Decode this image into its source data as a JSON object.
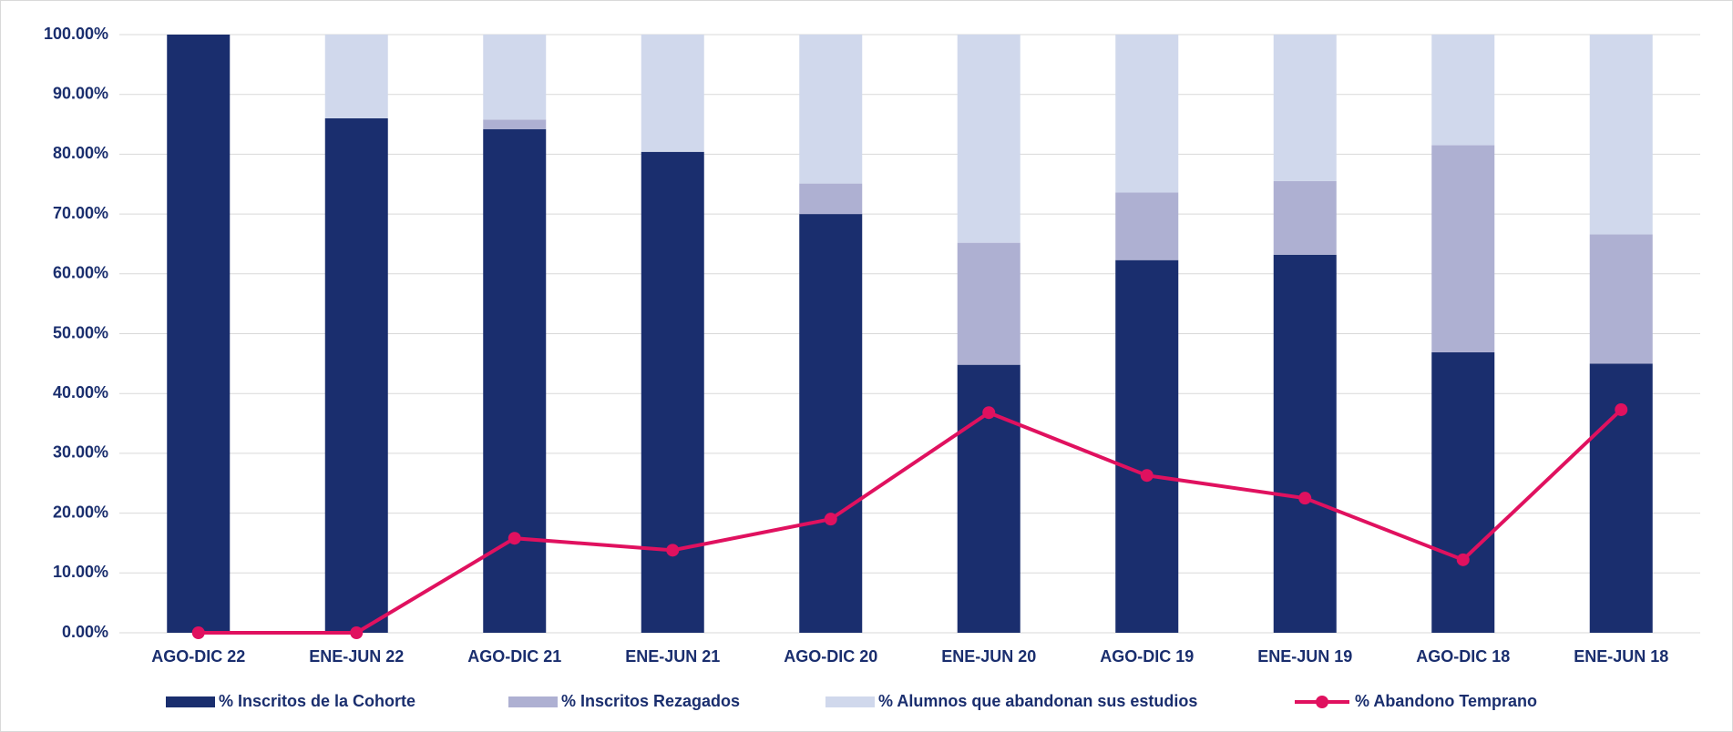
{
  "chart_data": {
    "type": "bar",
    "stacked": true,
    "categories": [
      "AGO-DIC 22",
      "ENE-JUN 22",
      "AGO-DIC 21",
      "ENE-JUN 21",
      "AGO-DIC 20",
      "ENE-JUN 20",
      "AGO-DIC 19",
      "ENE-JUN 19",
      "AGO-DIC 18",
      "ENE-JUN 18"
    ],
    "series": [
      {
        "name": "% Inscritos de la Cohorte",
        "color": "#1a2e6e",
        "type": "bar",
        "values": [
          100,
          86,
          84.2,
          80.4,
          70,
          44.8,
          62.3,
          63.2,
          46.9,
          45
        ]
      },
      {
        "name": "% Inscritos Rezagados",
        "color": "#aeb0d2",
        "type": "bar",
        "values": [
          0,
          0,
          1.6,
          0,
          5.1,
          20.4,
          11.3,
          12.3,
          34.6,
          21.6
        ]
      },
      {
        "name": "% Alumnos que abandonan sus estudios",
        "color": "#d0d8ec",
        "type": "bar",
        "values": [
          0,
          14,
          14.2,
          19.6,
          24.9,
          34.8,
          26.4,
          24.5,
          18.5,
          33.4
        ]
      },
      {
        "name": "% Abandono Temprano",
        "color": "#e0115f",
        "type": "line",
        "values": [
          0,
          0,
          15.8,
          13.8,
          19,
          36.8,
          26.3,
          22.5,
          12.2,
          37.3
        ]
      }
    ],
    "ylim": [
      0,
      100
    ],
    "yticks": [
      {
        "value": 0,
        "label": "0.00%"
      },
      {
        "value": 10,
        "label": "10.00%"
      },
      {
        "value": 20,
        "label": "20.00%"
      },
      {
        "value": 30,
        "label": "30.00%"
      },
      {
        "value": 40,
        "label": "40.00%"
      },
      {
        "value": 50,
        "label": "50.00%"
      },
      {
        "value": 60,
        "label": "60.00%"
      },
      {
        "value": 70,
        "label": "70.00%"
      },
      {
        "value": 80,
        "label": "80.00%"
      },
      {
        "value": 90,
        "label": "90.00%"
      },
      {
        "value": 100,
        "label": "100.00%"
      }
    ],
    "grid": true,
    "legend": "bottom"
  }
}
